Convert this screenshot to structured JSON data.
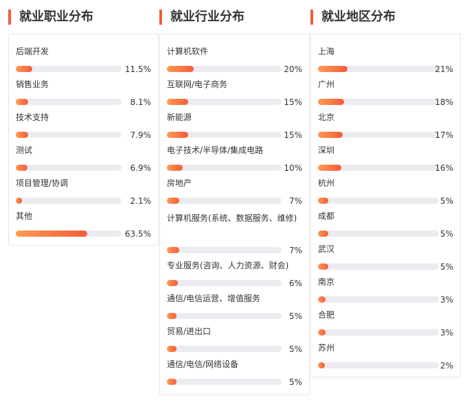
{
  "columns": [
    {
      "title": "就业职业分布",
      "items": [
        {
          "label": "后端开发",
          "value": 11.5,
          "pct": "11.5%"
        },
        {
          "label": "销售业务",
          "value": 8.1,
          "pct": "8.1%"
        },
        {
          "label": "技术支持",
          "value": 7.9,
          "pct": "7.9%"
        },
        {
          "label": "测试",
          "value": 6.9,
          "pct": "6.9%"
        },
        {
          "label": "项目管理/协调",
          "value": 2.1,
          "pct": "2.1%"
        },
        {
          "label": "其他",
          "value": 63.5,
          "pct": "63.5%"
        }
      ]
    },
    {
      "title": "就业行业分布",
      "items": [
        {
          "label": "计算机软件",
          "value": 20,
          "pct": "20%"
        },
        {
          "label": "互联网/电子商务",
          "value": 15,
          "pct": "15%"
        },
        {
          "label": "新能源",
          "value": 15,
          "pct": "15%"
        },
        {
          "label": "电子技术/半导体/集成电路",
          "value": 10,
          "pct": "10%"
        },
        {
          "label": "房地产",
          "value": 7,
          "pct": "7%"
        },
        {
          "label": "计算机服务(系统、数据服务、维修)",
          "value": 7,
          "pct": "7%"
        },
        {
          "label": "专业服务(咨询、人力资源、财会)",
          "value": 6,
          "pct": "6%"
        },
        {
          "label": "通信/电信运营、增值服务",
          "value": 5,
          "pct": "5%"
        },
        {
          "label": "贸易/进出口",
          "value": 5,
          "pct": "5%"
        },
        {
          "label": "通信/电信/网络设备",
          "value": 5,
          "pct": "5%"
        }
      ]
    },
    {
      "title": "就业地区分布",
      "items": [
        {
          "label": "上海",
          "value": 21,
          "pct": "21%"
        },
        {
          "label": "广州",
          "value": 18,
          "pct": "18%"
        },
        {
          "label": "北京",
          "value": 17,
          "pct": "17%"
        },
        {
          "label": "深圳",
          "value": 16,
          "pct": "16%"
        },
        {
          "label": "杭州",
          "value": 5,
          "pct": "5%"
        },
        {
          "label": "成都",
          "value": 5,
          "pct": "5%"
        },
        {
          "label": "武汉",
          "value": 5,
          "pct": "5%"
        },
        {
          "label": "南京",
          "value": 3,
          "pct": "3%"
        },
        {
          "label": "合肥",
          "value": 3,
          "pct": "3%"
        },
        {
          "label": "苏州",
          "value": 2,
          "pct": "2%"
        }
      ]
    }
  ],
  "colors": {
    "accent": "#f25d35",
    "bar_start": "#ff9a52",
    "bar_end": "#f35d3b",
    "track": "#ebebf0"
  }
}
